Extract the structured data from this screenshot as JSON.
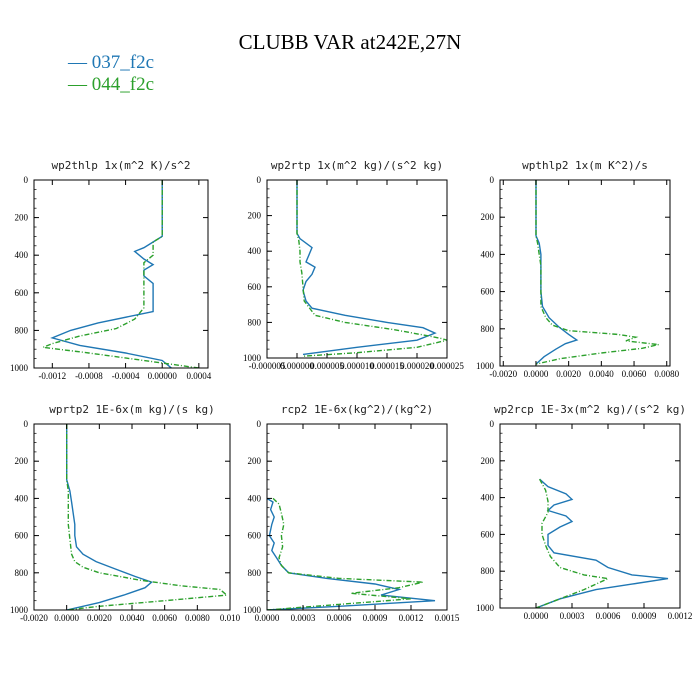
{
  "title": "CLUBB VAR at242E,27N",
  "legend": [
    {
      "label": "— 037_f2c",
      "color": "#1f77b4",
      "dash": "solid"
    },
    {
      "label": "— 044_f2c",
      "color": "#2ca02c",
      "dash": "dashed"
    }
  ],
  "colors": {
    "series1": "#1f77b4",
    "series2": "#2ca02c",
    "axis": "#000000"
  },
  "chart_data": [
    {
      "type": "line",
      "title": "wp2thlp  1x(m^2 K)/s^2",
      "xlim": [
        -0.0014,
        0.0005
      ],
      "ylim": [
        0,
        1000
      ],
      "y_inverted": true,
      "xticks": [
        -0.0012,
        -0.0008,
        -0.0004,
        0.0,
        0.0004
      ],
      "xtick_labels": [
        "-0.0012",
        "-0.0008",
        "-0.0004",
        "0.00000",
        "0.0004"
      ],
      "yticks": [
        0,
        200,
        400,
        600,
        800,
        1000
      ],
      "series": [
        {
          "name": "037_f2c",
          "points": [
            [
              0,
              0
            ],
            [
              0,
              300
            ],
            [
              -0.0001,
              330
            ],
            [
              -0.0002,
              360
            ],
            [
              -0.0003,
              380
            ],
            [
              -0.0002,
              420
            ],
            [
              -0.0001,
              450
            ],
            [
              -0.0002,
              480
            ],
            [
              -0.0002,
              510
            ],
            [
              -0.0001,
              550
            ],
            [
              -0.0001,
              600
            ],
            [
              -0.0001,
              650
            ],
            [
              -0.0001,
              700
            ],
            [
              -0.0007,
              760
            ],
            [
              -0.001,
              800
            ],
            [
              -0.0012,
              840
            ],
            [
              -0.0009,
              880
            ],
            [
              -0.0004,
              920
            ],
            [
              0.0,
              960
            ],
            [
              0.0001,
              1000
            ]
          ]
        },
        {
          "name": "044_f2c",
          "points": [
            [
              0,
              0
            ],
            [
              0,
              300
            ],
            [
              -0.0001,
              330
            ],
            [
              -0.0001,
              370
            ],
            [
              -0.0001,
              400
            ],
            [
              -0.0002,
              440
            ],
            [
              -0.0002,
              500
            ],
            [
              -0.0002,
              560
            ],
            [
              -0.0002,
              620
            ],
            [
              -0.0002,
              680
            ],
            [
              -0.0003,
              740
            ],
            [
              -0.0005,
              790
            ],
            [
              -0.0009,
              830
            ],
            [
              -0.0012,
              870
            ],
            [
              -0.0013,
              890
            ],
            [
              -0.0008,
              920
            ],
            [
              -0.0002,
              960
            ],
            [
              0.0004,
              1000
            ]
          ]
        }
      ]
    },
    {
      "type": "line",
      "title": "wp2rtp  1x(m^2 kg)/(s^2 kg)",
      "xlim": [
        -5e-06,
        2.5e-05
      ],
      "ylim": [
        0,
        1000
      ],
      "y_inverted": true,
      "xticks": [
        -5e-06,
        0.0,
        5e-06,
        1e-05,
        1.5e-05,
        2e-05,
        2.5e-05
      ],
      "xtick_labels": [
        "-0.000005",
        "0.000000",
        "0.000005",
        "0.000010",
        "0.000015",
        "0.000020",
        "0.000025"
      ],
      "yticks": [
        0,
        200,
        400,
        600,
        800,
        1000
      ],
      "series": [
        {
          "name": "037_f2c",
          "points": [
            [
              0,
              0
            ],
            [
              0,
              300
            ],
            [
              5e-07,
              330
            ],
            [
              2.5e-06,
              380
            ],
            [
              2e-06,
              420
            ],
            [
              1.5e-06,
              460
            ],
            [
              3e-06,
              490
            ],
            [
              2.5e-06,
              530
            ],
            [
              1.5e-06,
              570
            ],
            [
              1e-06,
              620
            ],
            [
              1.5e-06,
              680
            ],
            [
              2.5e-06,
              720
            ],
            [
              8e-06,
              760
            ],
            [
              1.5e-05,
              800
            ],
            [
              2.1e-05,
              830
            ],
            [
              2.3e-05,
              860
            ],
            [
              2e-05,
              900
            ],
            [
              1e-05,
              940
            ],
            [
              1e-06,
              980
            ]
          ]
        },
        {
          "name": "044_f2c",
          "points": [
            [
              0,
              0
            ],
            [
              0,
              300
            ],
            [
              3e-07,
              340
            ],
            [
              5e-07,
              400
            ],
            [
              5e-07,
              460
            ],
            [
              8e-07,
              520
            ],
            [
              1e-06,
              600
            ],
            [
              1.2e-06,
              680
            ],
            [
              3e-06,
              760
            ],
            [
              8e-06,
              800
            ],
            [
              1.6e-05,
              840
            ],
            [
              2.1e-05,
              870
            ],
            [
              2.4e-05,
              890
            ],
            [
              2.5e-05,
              900
            ],
            [
              2e-05,
              940
            ],
            [
              1e-05,
              970
            ],
            [
              1e-06,
              990
            ]
          ]
        }
      ]
    },
    {
      "type": "line",
      "title": "wpthlp2  1x(m K^2)/s",
      "xlim": [
        -0.0022,
        0.0082
      ],
      "ylim": [
        0,
        1000
      ],
      "y_inverted": true,
      "xticks": [
        -0.002,
        0.0,
        0.002,
        0.004,
        0.006,
        0.008
      ],
      "xtick_labels": [
        "-0.0020",
        "0.0000",
        "0.0020",
        "0.0040",
        "0.0060",
        "0.0080"
      ],
      "yticks": [
        0,
        200,
        400,
        600,
        800,
        1000
      ],
      "series": [
        {
          "name": "037_f2c",
          "points": [
            [
              0,
              0
            ],
            [
              0,
              300
            ],
            [
              0.0002,
              340
            ],
            [
              0.0003,
              400
            ],
            [
              0.0003,
              460
            ],
            [
              0.0003,
              520
            ],
            [
              0.0003,
              600
            ],
            [
              0.0004,
              680
            ],
            [
              0.0008,
              740
            ],
            [
              0.0014,
              790
            ],
            [
              0.002,
              830
            ],
            [
              0.0025,
              860
            ],
            [
              0.0018,
              880
            ],
            [
              0.0012,
              910
            ],
            [
              0.0005,
              950
            ],
            [
              0.0,
              990
            ]
          ]
        },
        {
          "name": "044_f2c",
          "points": [
            [
              0,
              0
            ],
            [
              0,
              300
            ],
            [
              0.0001,
              340
            ],
            [
              0.0002,
              400
            ],
            [
              0.0003,
              460
            ],
            [
              0.0003,
              520
            ],
            [
              0.0003,
              600
            ],
            [
              0.0003,
              680
            ],
            [
              0.0006,
              740
            ],
            [
              0.001,
              780
            ],
            [
              0.002,
              810
            ],
            [
              0.005,
              830
            ],
            [
              0.0061,
              845
            ],
            [
              0.0055,
              865
            ],
            [
              0.0075,
              885
            ],
            [
              0.0065,
              905
            ],
            [
              0.004,
              930
            ],
            [
              0.0015,
              960
            ],
            [
              0.0,
              990
            ]
          ]
        }
      ]
    },
    {
      "type": "line",
      "title": "wprtp2  1E-6x(m kg)/(s kg)",
      "xlim": [
        -0.002,
        0.01
      ],
      "ylim": [
        0,
        1000
      ],
      "y_inverted": true,
      "xticks": [
        -0.002,
        0.0,
        0.002,
        0.004,
        0.006,
        0.008,
        0.01
      ],
      "xtick_labels": [
        "-0.0020",
        "0.0000",
        "0.0020",
        "0.0040",
        "0.0060",
        "0.0080",
        "0.010"
      ],
      "yticks": [
        0,
        200,
        400,
        600,
        800,
        1000
      ],
      "series": [
        {
          "name": "037_f2c",
          "points": [
            [
              0,
              0
            ],
            [
              0,
              300
            ],
            [
              0.0002,
              360
            ],
            [
              0.0003,
              420
            ],
            [
              0.0004,
              480
            ],
            [
              0.0005,
              540
            ],
            [
              0.0005,
              600
            ],
            [
              0.0006,
              660
            ],
            [
              0.001,
              700
            ],
            [
              0.0018,
              740
            ],
            [
              0.003,
              780
            ],
            [
              0.0042,
              820
            ],
            [
              0.0052,
              850
            ],
            [
              0.0048,
              880
            ],
            [
              0.0035,
              920
            ],
            [
              0.002,
              960
            ],
            [
              0.0,
              1000
            ]
          ]
        },
        {
          "name": "044_f2c",
          "points": [
            [
              0,
              0
            ],
            [
              0,
              300
            ],
            [
              0.0001,
              360
            ],
            [
              0.0001,
              420
            ],
            [
              0.0001,
              480
            ],
            [
              0.0001,
              540
            ],
            [
              0.0002,
              620
            ],
            [
              0.0003,
              700
            ],
            [
              0.0005,
              740
            ],
            [
              0.001,
              770
            ],
            [
              0.002,
              800
            ],
            [
              0.0045,
              840
            ],
            [
              0.007,
              870
            ],
            [
              0.0094,
              890
            ],
            [
              0.0098,
              920
            ],
            [
              0.006,
              950
            ],
            [
              0.002,
              980
            ],
            [
              0.0,
              1000
            ]
          ]
        }
      ]
    },
    {
      "type": "line",
      "title": "rcp2  1E-6x(kg^2)/(kg^2)",
      "xlim": [
        0.0,
        0.0015
      ],
      "ylim": [
        0,
        1000
      ],
      "y_inverted": true,
      "xticks": [
        0.0,
        0.0003,
        0.0006,
        0.0009,
        0.0012,
        0.0015
      ],
      "xtick_labels": [
        "0.0000",
        "0.0003",
        "0.0006",
        "0.0009",
        "0.0012",
        "0.0015"
      ],
      "yticks": [
        0,
        200,
        400,
        600,
        800,
        1000
      ],
      "series": [
        {
          "name": "037_f2c",
          "points": [
            [
              0.0,
              400
            ],
            [
              5e-05,
              420
            ],
            [
              3e-05,
              460
            ],
            [
              6e-05,
              500
            ],
            [
              4e-05,
              540
            ],
            [
              2e-05,
              600
            ],
            [
              6e-05,
              640
            ],
            [
              4e-05,
              680
            ],
            [
              8e-05,
              720
            ],
            [
              0.00012,
              760
            ],
            [
              0.00018,
              800
            ],
            [
              0.0005,
              830
            ],
            [
              0.0009,
              860
            ],
            [
              0.0011,
              890
            ],
            [
              0.00095,
              920
            ],
            [
              0.0014,
              950
            ],
            [
              0.0006,
              980
            ],
            [
              0.0,
              1000
            ]
          ]
        },
        {
          "name": "044_f2c",
          "points": [
            [
              5e-05,
              400
            ],
            [
              0.0001,
              430
            ],
            [
              0.00012,
              480
            ],
            [
              0.00014,
              540
            ],
            [
              0.00012,
              600
            ],
            [
              0.00013,
              660
            ],
            [
              0.0001,
              720
            ],
            [
              0.00012,
              760
            ],
            [
              0.00018,
              800
            ],
            [
              0.0006,
              830
            ],
            [
              0.0013,
              850
            ],
            [
              0.0011,
              880
            ],
            [
              0.0007,
              910
            ],
            [
              0.0012,
              940
            ],
            [
              0.0006,
              970
            ],
            [
              0.0,
              1000
            ]
          ]
        }
      ]
    },
    {
      "type": "line",
      "title": "wp2rcp  1E-3x(m^2 kg)/(s^2 kg)",
      "xlim": [
        -0.0003,
        0.0012
      ],
      "ylim": [
        0,
        1000
      ],
      "y_inverted": true,
      "xticks": [
        0.0,
        0.0003,
        0.0006,
        0.0009,
        0.0012
      ],
      "xtick_labels": [
        "0.0000",
        "0.0003",
        "0.0006",
        "0.0009",
        "0.0012"
      ],
      "yticks": [
        0,
        200,
        400,
        600,
        800,
        1000
      ],
      "series": [
        {
          "name": "037_f2c",
          "points": [
            [
              3e-05,
              300
            ],
            [
              0.0001,
              340
            ],
            [
              0.00025,
              380
            ],
            [
              0.0003,
              410
            ],
            [
              0.00015,
              440
            ],
            [
              0.0001,
              470
            ],
            [
              0.00025,
              500
            ],
            [
              0.0003,
              530
            ],
            [
              0.0002,
              560
            ],
            [
              0.0001,
              600
            ],
            [
              0.0001,
              660
            ],
            [
              0.00015,
              700
            ],
            [
              0.0005,
              740
            ],
            [
              0.0006,
              780
            ],
            [
              0.0008,
              820
            ],
            [
              0.0011,
              840
            ],
            [
              0.0008,
              870
            ],
            [
              0.0005,
              900
            ],
            [
              0.0002,
              950
            ],
            [
              0.0,
              1000
            ]
          ]
        },
        {
          "name": "044_f2c",
          "points": [
            [
              3e-05,
              300
            ],
            [
              8e-05,
              360
            ],
            [
              0.0001,
              420
            ],
            [
              0.0001,
              480
            ],
            [
              5e-05,
              540
            ],
            [
              5e-05,
              600
            ],
            [
              8e-05,
              660
            ],
            [
              0.00012,
              720
            ],
            [
              0.0002,
              780
            ],
            [
              0.0004,
              820
            ],
            [
              0.0006,
              840
            ],
            [
              0.0005,
              870
            ],
            [
              0.0004,
              900
            ],
            [
              0.0002,
              950
            ],
            [
              0.0,
              1000
            ]
          ]
        }
      ]
    }
  ]
}
